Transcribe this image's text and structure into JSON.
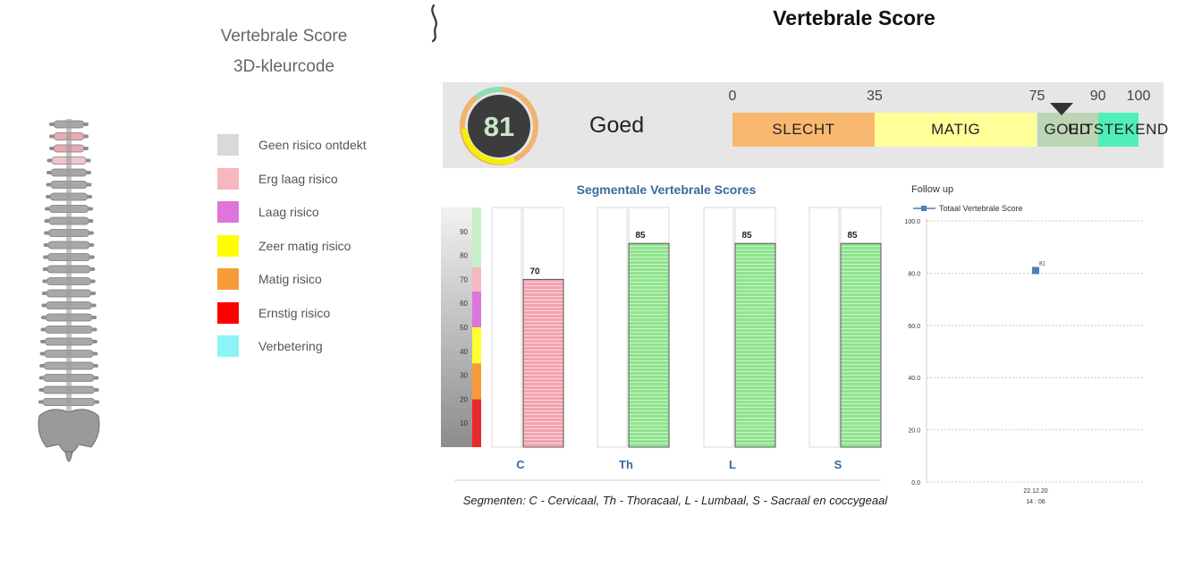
{
  "header": {
    "title": "Vertebrale Score"
  },
  "legend": {
    "title_line1": "Vertebrale Score",
    "title_line2": "3D-kleurcode",
    "items": [
      {
        "label": "Geen risico ontdekt",
        "color": "#d9d9d9"
      },
      {
        "label": "Erg laag  risico",
        "color": "#f7b7bf"
      },
      {
        "label": "Laag  risico",
        "color": "#dc76dc"
      },
      {
        "label": "Zeer matig risico",
        "color": "#ffff00"
      },
      {
        "label": "Matig risico",
        "color": "#f79b39"
      },
      {
        "label": "Ernstig risico",
        "color": "#ff0000"
      },
      {
        "label": "Verbetering",
        "color": "#8cf4f7"
      }
    ]
  },
  "score_panel": {
    "score": "81",
    "score_value": 81,
    "label": "Goed",
    "scale_ticks": [
      "0",
      "35",
      "75",
      "90",
      "100"
    ],
    "bands": [
      {
        "label": "SLECHT",
        "from": 0,
        "to": 35,
        "color": "#f9b870"
      },
      {
        "label": "MATIG",
        "from": 35,
        "to": 75,
        "color": "#ffff99"
      },
      {
        "label": "GOED",
        "from": 75,
        "to": 90,
        "color": "#bcd5b5"
      },
      {
        "label": "UITSTEKEND",
        "from": 90,
        "to": 100,
        "color": "#4ff0b8"
      }
    ]
  },
  "chart_data": [
    {
      "type": "bar",
      "title": "Segmentale Vertebrale Scores",
      "categories": [
        "C",
        "Th",
        "L",
        "S"
      ],
      "values": [
        70,
        85,
        85,
        85
      ],
      "value_labels": [
        "70",
        "85",
        "85",
        "85"
      ],
      "bar_colors": [
        "#f4a3b0",
        "#8fe48f",
        "#8fe48f",
        "#8fe48f"
      ],
      "ylim": [
        0,
        100
      ],
      "y_ticks": [
        "10",
        "20",
        "30",
        "40",
        "50",
        "60",
        "70",
        "80",
        "90"
      ],
      "color_scale": [
        {
          "from": 0,
          "to": 20,
          "color": "#e8292c"
        },
        {
          "from": 20,
          "to": 35,
          "color": "#f79b39"
        },
        {
          "from": 35,
          "to": 50,
          "color": "#ffff33"
        },
        {
          "from": 50,
          "to": 65,
          "color": "#dc76dc"
        },
        {
          "from": 65,
          "to": 75,
          "color": "#f7b7bf"
        },
        {
          "from": 75,
          "to": 100,
          "color": "#c6efc6"
        }
      ],
      "note": "Segmenten: C - Cervicaal, Th - Thoracaal, L - Lumbaal, S - Sacraal en coccygeaal"
    },
    {
      "type": "scatter",
      "title": "Follow up",
      "series": [
        {
          "name": "Totaal Vertebrale Score",
          "x": [
            "22.12.20 14 : 06"
          ],
          "y": [
            81
          ],
          "labels": [
            "81"
          ],
          "color": "#4f7fb8"
        }
      ],
      "x_tick_line1": "22.12.20",
      "x_tick_line2": "14 : 06",
      "y_ticks": [
        "0.0",
        "20.0",
        "40.0",
        "60.0",
        "80.0",
        "100.0"
      ],
      "ylim": [
        0,
        100
      ],
      "grid": true,
      "legend": "top-left"
    }
  ]
}
